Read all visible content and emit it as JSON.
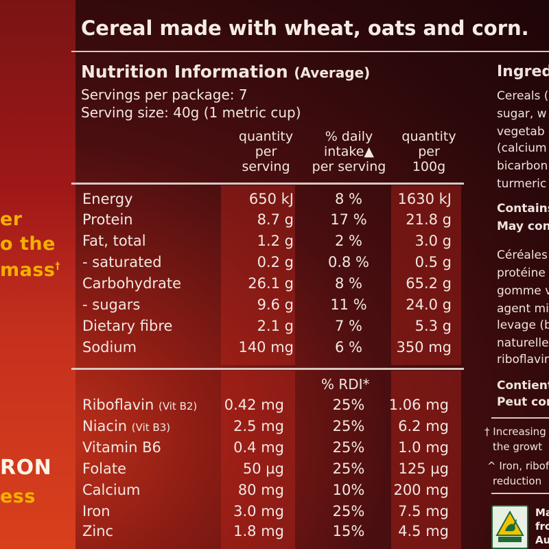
{
  "left_panel": {
    "line1": "er",
    "line2": "o the",
    "line3": "mass",
    "line3_mark": "†",
    "line4": "RON",
    "line5": "ess"
  },
  "headline": "Cereal made with wheat, oats and corn.",
  "nutrition": {
    "title": "Nutrition Information",
    "title_suffix": "(Average)",
    "servings_per_package": "Servings per package: 7",
    "serving_size": "Serving size: 40g (1 metric cup)",
    "col_headers": [
      "quantity\nper\nserving",
      "% daily\nintake▲\nper serving",
      "quantity\nper\n100g"
    ],
    "rows": [
      {
        "name": "Energy",
        "per_serving": "650 kJ",
        "daily": "8 %",
        "per_100g": "1630 kJ"
      },
      {
        "name": "Protein",
        "per_serving": "8.7 g",
        "daily": "17 %",
        "per_100g": "21.8 g"
      },
      {
        "name": "Fat, total",
        "per_serving": "1.2 g",
        "daily": "2 %",
        "per_100g": "3.0 g"
      },
      {
        "name": "- saturated",
        "per_serving": "0.2 g",
        "daily": "0.8 %",
        "per_100g": "0.5 g"
      },
      {
        "name": "Carbohydrate",
        "per_serving": "26.1 g",
        "daily": "8 %",
        "per_100g": "65.2 g"
      },
      {
        "name": "- sugars",
        "per_serving": "9.6 g",
        "daily": "11 %",
        "per_100g": "24.0 g"
      },
      {
        "name": "Dietary fibre",
        "per_serving": "2.1 g",
        "daily": "7 %",
        "per_100g": "5.3 g"
      },
      {
        "name": "Sodium",
        "per_serving": "140 mg",
        "daily": "6 %",
        "per_100g": "350 mg"
      }
    ],
    "rdi_header": "% RDI*",
    "vitamins": [
      {
        "name": "Riboflavin",
        "note": "(Vit B2)",
        "per_serving": "0.42 mg",
        "rdi": "25%",
        "per_100g": "1.06 mg"
      },
      {
        "name": "Niacin",
        "note": "(Vit B3)",
        "per_serving": "2.5 mg",
        "rdi": "25%",
        "per_100g": "6.2 mg"
      },
      {
        "name": "Vitamin B6",
        "note": "",
        "per_serving": "0.4 mg",
        "rdi": "25%",
        "per_100g": "1.0 mg"
      },
      {
        "name": "Folate",
        "note": "",
        "per_serving": "50 µg",
        "rdi": "25%",
        "per_100g": "125 µg"
      },
      {
        "name": "Calcium",
        "note": "",
        "per_serving": "80 mg",
        "rdi": "10%",
        "per_100g": "200 mg"
      },
      {
        "name": "Iron",
        "note": "",
        "per_serving": "3.0 mg",
        "rdi": "25%",
        "per_100g": "7.5 mg"
      },
      {
        "name": "Zinc",
        "note": "",
        "per_serving": "1.8 mg",
        "rdi": "15%",
        "per_100g": "4.5 mg"
      }
    ]
  },
  "ingredients": {
    "heading": "Ingred",
    "lines": [
      "Cereals (",
      "sugar, w",
      "vegetab",
      "(calcium",
      "bicarbon",
      "turmeric"
    ],
    "contains": "Contains",
    "may_contain": "May con",
    "french_lines": [
      "Céréales",
      "protéine",
      "gomme v",
      "agent mi",
      "levage (b",
      "naturelle",
      "riboflavin"
    ],
    "contient": "Contient",
    "peut_con": "Peut con",
    "footnote1_a": "† Increasing",
    "footnote1_b": "the growt",
    "footnote2_a": "^ Iron, ribofl",
    "footnote2_b": "reduction",
    "logo_lines": [
      "Ma",
      "fro",
      "Au"
    ]
  },
  "colors": {
    "band": "#c8281e",
    "accent": "#f4b000"
  }
}
